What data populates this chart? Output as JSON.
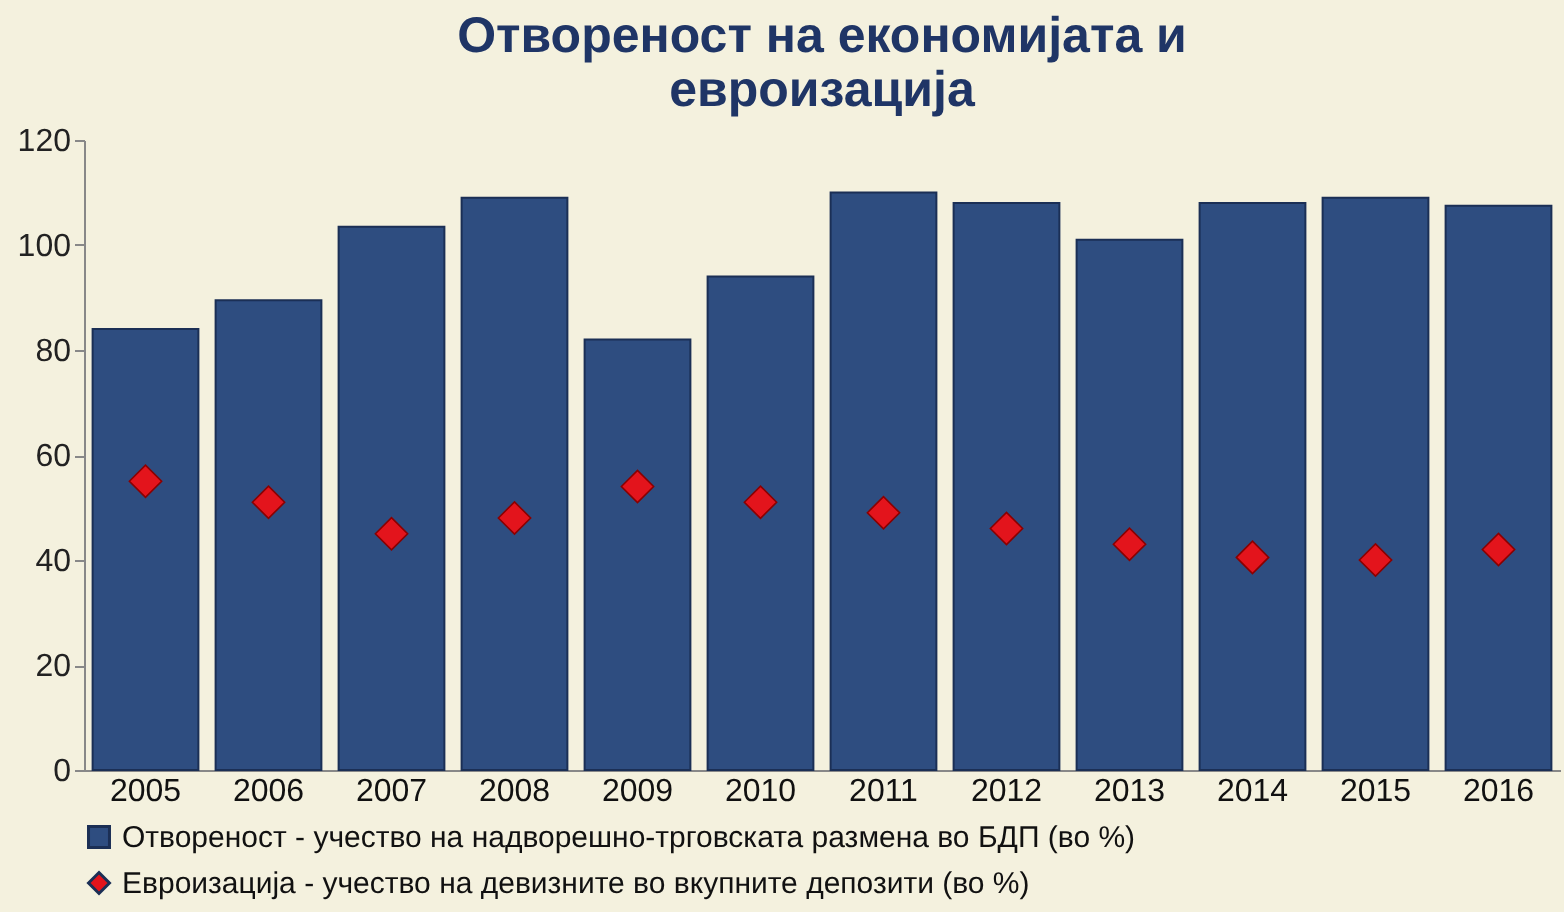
{
  "chart_data": {
    "type": "bar",
    "title": "Отвореност на економијата и евроизација",
    "categories": [
      "2005",
      "2006",
      "2007",
      "2008",
      "2009",
      "2010",
      "2011",
      "2012",
      "2013",
      "2014",
      "2015",
      "2016"
    ],
    "series": [
      {
        "name": "Отвореност - учество на надворешно-трговската размена во БДП (во %)",
        "color": "#2e4d80",
        "values": [
          84,
          89.5,
          103.5,
          109,
          82,
          94,
          110,
          108,
          101,
          108,
          109,
          107.5
        ]
      },
      {
        "name": "Евроизација - учество на девизните во вкупните депозити (во %)",
        "type": "scatter",
        "color": "#e3141c",
        "values": [
          55,
          51,
          45,
          48,
          54,
          51,
          49,
          46,
          43,
          40.5,
          40,
          42
        ]
      }
    ],
    "marker": "diamond",
    "ylim": [
      0,
      120
    ],
    "yticks": [
      0,
      20,
      40,
      60,
      80,
      100,
      120
    ],
    "grid": false,
    "legend": "bottom"
  }
}
